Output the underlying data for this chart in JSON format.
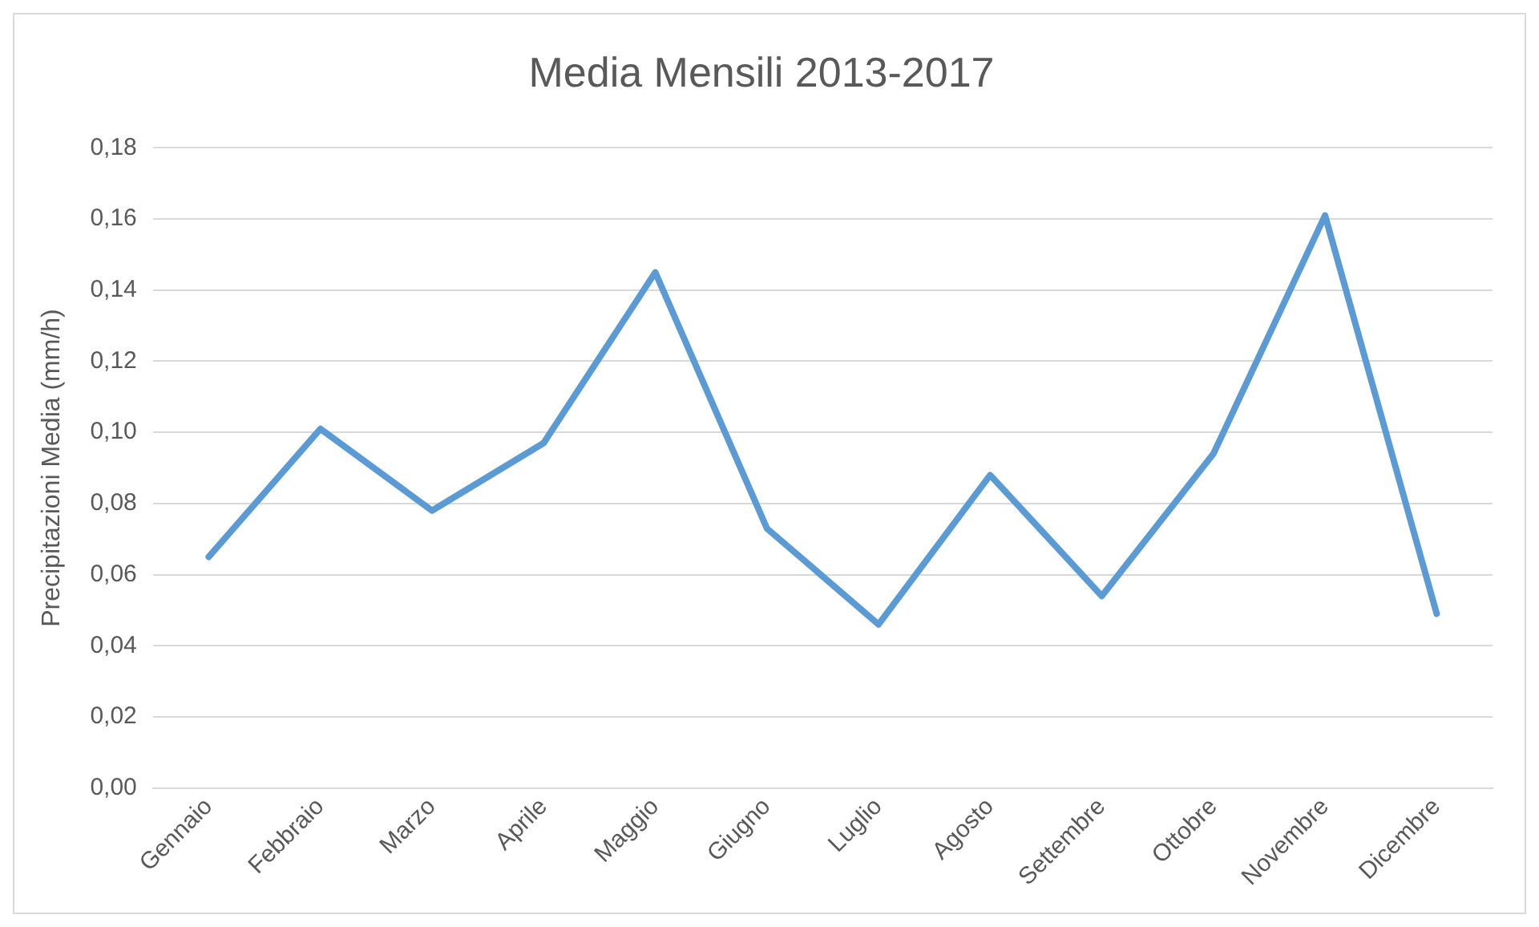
{
  "chart_data": {
    "type": "line",
    "title": "Media Mensili 2013-2017",
    "ylabel": "Precipitazioni Media (mm/h)",
    "categories": [
      "Gennaio",
      "Febbraio",
      "Marzo",
      "Aprile",
      "Maggio",
      "Giugno",
      "Luglio",
      "Agosto",
      "Settembre",
      "Ottobre",
      "Novembre",
      "Dicembre"
    ],
    "series": [
      {
        "color": "#5b9bd5",
        "values": [
          0.065,
          0.101,
          0.078,
          0.097,
          0.145,
          0.073,
          0.046,
          0.088,
          0.054,
          0.094,
          0.161,
          0.049
        ]
      }
    ],
    "ylim": [
      0,
      0.18
    ],
    "yticks": [
      {
        "value": 0,
        "label": "0,00"
      },
      {
        "value": 0.02,
        "label": "0,02"
      },
      {
        "value": 0.04,
        "label": "0,04"
      },
      {
        "value": 0.06,
        "label": "0,06"
      },
      {
        "value": 0.08,
        "label": "0,08"
      },
      {
        "value": 0.1,
        "label": "0,10"
      },
      {
        "value": 0.12,
        "label": "0,12"
      },
      {
        "value": 0.14,
        "label": "0,14"
      },
      {
        "value": 0.16,
        "label": "0,16"
      },
      {
        "value": 0.18,
        "label": "0,18"
      }
    ],
    "grid": "y",
    "legend": false,
    "marker": "none",
    "line_style": "solid"
  }
}
